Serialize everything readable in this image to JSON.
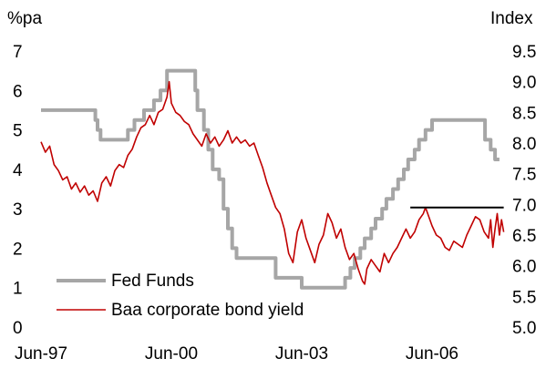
{
  "chart_data": {
    "type": "line",
    "title": "",
    "left_axis": {
      "unit_label": "%pa",
      "ylim": [
        0,
        7
      ],
      "ticks": [
        "0",
        "1",
        "2",
        "3",
        "4",
        "5",
        "6",
        "7"
      ]
    },
    "right_axis": {
      "unit_label": "Index",
      "ylim": [
        5.0,
        9.5
      ],
      "ticks": [
        "5.0",
        "5.5",
        "6.0",
        "6.5",
        "7.0",
        "7.5",
        "8.0",
        "8.5",
        "9.0",
        "9.5"
      ]
    },
    "x_axis": {
      "xlim": [
        1997.5,
        2008.2
      ],
      "ticks": [
        {
          "x": 1997.5,
          "label": "Jun-97"
        },
        {
          "x": 2000.5,
          "label": "Jun-00"
        },
        {
          "x": 2003.5,
          "label": "Jun-03"
        },
        {
          "x": 2006.5,
          "label": "Jun-06"
        }
      ]
    },
    "grid": false,
    "legend": "bottom-left",
    "reference_line": {
      "axis": "right",
      "y": 6.95,
      "x_start": 2006.0,
      "x_end": 2008.15,
      "color": "#000000"
    },
    "series": [
      {
        "name": "Fed Funds",
        "axis": "left",
        "color": "#a6a6a6",
        "points": [
          [
            1997.5,
            5.5
          ],
          [
            1998.7,
            5.5
          ],
          [
            1998.75,
            5.25
          ],
          [
            1998.8,
            5.0
          ],
          [
            1998.87,
            4.75
          ],
          [
            1999.45,
            4.75
          ],
          [
            1999.5,
            5.0
          ],
          [
            1999.65,
            5.25
          ],
          [
            1999.87,
            5.5
          ],
          [
            2000.1,
            5.75
          ],
          [
            2000.25,
            6.0
          ],
          [
            2000.4,
            6.5
          ],
          [
            2001.0,
            6.5
          ],
          [
            2001.05,
            6.0
          ],
          [
            2001.1,
            5.5
          ],
          [
            2001.25,
            5.0
          ],
          [
            2001.35,
            4.5
          ],
          [
            2001.45,
            4.0
          ],
          [
            2001.6,
            3.75
          ],
          [
            2001.7,
            3.0
          ],
          [
            2001.8,
            2.5
          ],
          [
            2001.9,
            2.0
          ],
          [
            2002.0,
            1.75
          ],
          [
            2002.85,
            1.75
          ],
          [
            2002.9,
            1.25
          ],
          [
            2003.45,
            1.25
          ],
          [
            2003.5,
            1.0
          ],
          [
            2004.45,
            1.0
          ],
          [
            2004.5,
            1.25
          ],
          [
            2004.62,
            1.5
          ],
          [
            2004.72,
            1.75
          ],
          [
            2004.85,
            2.0
          ],
          [
            2004.95,
            2.25
          ],
          [
            2005.1,
            2.5
          ],
          [
            2005.2,
            2.75
          ],
          [
            2005.35,
            3.0
          ],
          [
            2005.45,
            3.25
          ],
          [
            2005.6,
            3.5
          ],
          [
            2005.72,
            3.75
          ],
          [
            2005.85,
            4.0
          ],
          [
            2005.95,
            4.25
          ],
          [
            2006.1,
            4.5
          ],
          [
            2006.2,
            4.75
          ],
          [
            2006.35,
            5.0
          ],
          [
            2006.5,
            5.25
          ],
          [
            2007.7,
            5.25
          ],
          [
            2007.72,
            4.75
          ],
          [
            2007.85,
            4.5
          ],
          [
            2007.95,
            4.25
          ],
          [
            2008.05,
            4.25
          ]
        ]
      },
      {
        "name": "Baa corporate bond yield",
        "axis": "right",
        "color": "#c00000",
        "points": [
          [
            1997.5,
            8.02
          ],
          [
            1997.6,
            7.85
          ],
          [
            1997.7,
            7.95
          ],
          [
            1997.8,
            7.65
          ],
          [
            1997.9,
            7.55
          ],
          [
            1998.0,
            7.4
          ],
          [
            1998.1,
            7.45
          ],
          [
            1998.2,
            7.25
          ],
          [
            1998.3,
            7.35
          ],
          [
            1998.4,
            7.2
          ],
          [
            1998.5,
            7.3
          ],
          [
            1998.6,
            7.15
          ],
          [
            1998.7,
            7.22
          ],
          [
            1998.8,
            7.05
          ],
          [
            1998.9,
            7.35
          ],
          [
            1999.0,
            7.45
          ],
          [
            1999.1,
            7.3
          ],
          [
            1999.2,
            7.55
          ],
          [
            1999.3,
            7.65
          ],
          [
            1999.4,
            7.6
          ],
          [
            1999.5,
            7.8
          ],
          [
            1999.6,
            7.9
          ],
          [
            1999.7,
            8.1
          ],
          [
            1999.8,
            8.25
          ],
          [
            1999.9,
            8.3
          ],
          [
            2000.0,
            8.45
          ],
          [
            2000.1,
            8.3
          ],
          [
            2000.2,
            8.5
          ],
          [
            2000.3,
            8.55
          ],
          [
            2000.4,
            8.75
          ],
          [
            2000.45,
            9.0
          ],
          [
            2000.5,
            8.65
          ],
          [
            2000.6,
            8.5
          ],
          [
            2000.7,
            8.45
          ],
          [
            2000.8,
            8.35
          ],
          [
            2000.9,
            8.3
          ],
          [
            2001.0,
            8.15
          ],
          [
            2001.1,
            8.05
          ],
          [
            2001.2,
            7.95
          ],
          [
            2001.3,
            8.15
          ],
          [
            2001.4,
            8.0
          ],
          [
            2001.5,
            8.1
          ],
          [
            2001.6,
            7.95
          ],
          [
            2001.7,
            8.05
          ],
          [
            2001.8,
            8.2
          ],
          [
            2001.9,
            8.0
          ],
          [
            2002.0,
            8.1
          ],
          [
            2002.1,
            8.0
          ],
          [
            2002.2,
            8.05
          ],
          [
            2002.3,
            7.95
          ],
          [
            2002.4,
            8.0
          ],
          [
            2002.5,
            7.8
          ],
          [
            2002.6,
            7.6
          ],
          [
            2002.7,
            7.35
          ],
          [
            2002.8,
            7.15
          ],
          [
            2002.9,
            6.95
          ],
          [
            2003.0,
            6.85
          ],
          [
            2003.1,
            6.6
          ],
          [
            2003.2,
            6.2
          ],
          [
            2003.3,
            6.05
          ],
          [
            2003.4,
            6.55
          ],
          [
            2003.5,
            6.75
          ],
          [
            2003.6,
            6.45
          ],
          [
            2003.7,
            6.25
          ],
          [
            2003.8,
            6.05
          ],
          [
            2003.9,
            6.35
          ],
          [
            2004.0,
            6.5
          ],
          [
            2004.1,
            6.85
          ],
          [
            2004.2,
            6.7
          ],
          [
            2004.3,
            6.45
          ],
          [
            2004.4,
            6.6
          ],
          [
            2004.5,
            6.3
          ],
          [
            2004.6,
            6.1
          ],
          [
            2004.7,
            6.2
          ],
          [
            2004.8,
            5.95
          ],
          [
            2004.9,
            5.75
          ],
          [
            2004.95,
            5.7
          ],
          [
            2005.0,
            5.95
          ],
          [
            2005.1,
            6.1
          ],
          [
            2005.2,
            6.0
          ],
          [
            2005.3,
            5.9
          ],
          [
            2005.4,
            6.2
          ],
          [
            2005.5,
            6.05
          ],
          [
            2005.6,
            6.2
          ],
          [
            2005.7,
            6.3
          ],
          [
            2005.8,
            6.45
          ],
          [
            2005.9,
            6.6
          ],
          [
            2006.0,
            6.45
          ],
          [
            2006.1,
            6.55
          ],
          [
            2006.2,
            6.75
          ],
          [
            2006.3,
            6.85
          ],
          [
            2006.35,
            6.95
          ],
          [
            2006.4,
            6.85
          ],
          [
            2006.5,
            6.65
          ],
          [
            2006.6,
            6.5
          ],
          [
            2006.7,
            6.45
          ],
          [
            2006.8,
            6.3
          ],
          [
            2006.9,
            6.25
          ],
          [
            2007.0,
            6.4
          ],
          [
            2007.1,
            6.35
          ],
          [
            2007.2,
            6.3
          ],
          [
            2007.3,
            6.5
          ],
          [
            2007.4,
            6.65
          ],
          [
            2007.5,
            6.8
          ],
          [
            2007.6,
            6.75
          ],
          [
            2007.7,
            6.55
          ],
          [
            2007.8,
            6.45
          ],
          [
            2007.85,
            6.75
          ],
          [
            2007.9,
            6.3
          ],
          [
            2007.95,
            6.6
          ],
          [
            2008.0,
            6.85
          ],
          [
            2008.05,
            6.5
          ],
          [
            2008.1,
            6.75
          ],
          [
            2008.15,
            6.55
          ]
        ]
      }
    ]
  }
}
